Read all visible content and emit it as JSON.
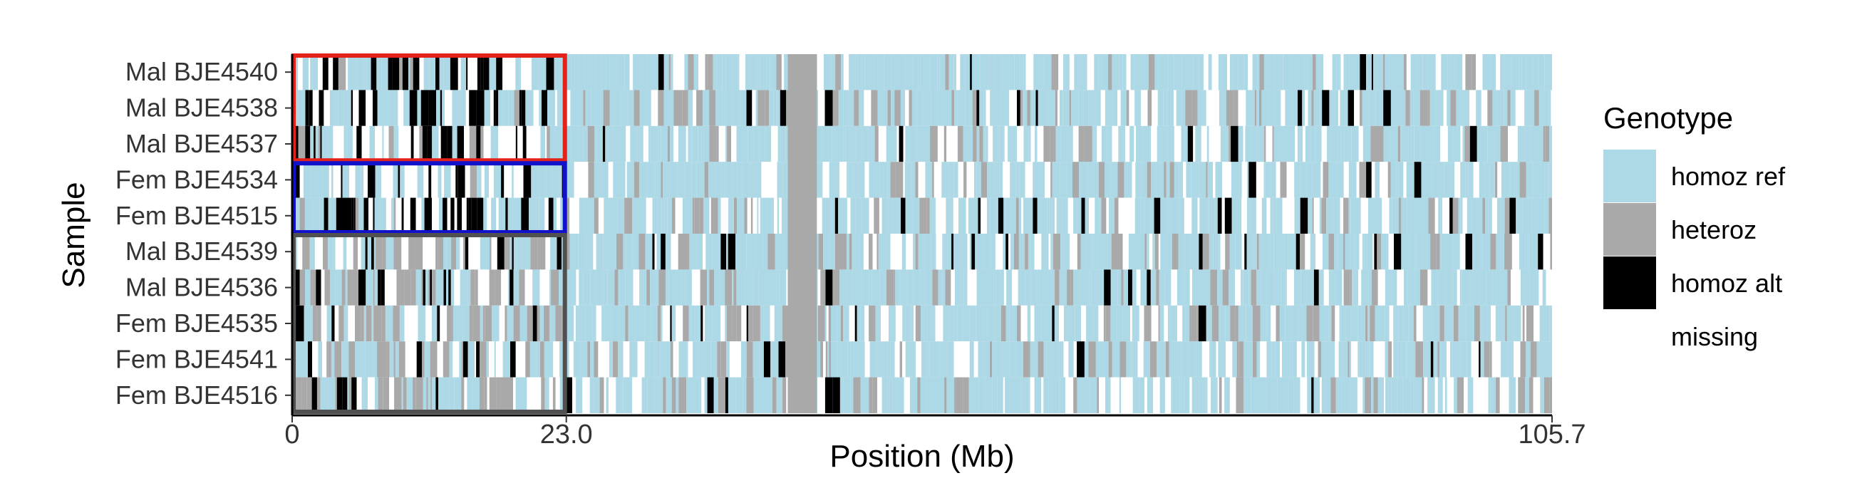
{
  "chart_data": {
    "type": "heatmap",
    "xlabel": "Position (Mb)",
    "ylabel": "Sample",
    "xlim": [
      0,
      105.7
    ],
    "xticks": [
      {
        "value": 0,
        "label": "0"
      },
      {
        "value": 23.0,
        "label": "23.0"
      },
      {
        "value": 105.7,
        "label": "105.7"
      }
    ],
    "samples": [
      "Mal BJE4540",
      "Mal BJE4538",
      "Mal BJE4537",
      "Fem BJE4534",
      "Fem BJE4515",
      "Mal BJE4539",
      "Mal BJE4536",
      "Fem BJE4535",
      "Fem BJE4541",
      "Fem BJE4516"
    ],
    "legend": {
      "title": "Genotype",
      "items": [
        {
          "label": "homoz ref",
          "color": "#add8e6"
        },
        {
          "label": "heteroz",
          "color": "#a9a9a9"
        },
        {
          "label": "homoz alt",
          "color": "#000000"
        },
        {
          "label": "missing",
          "color": "#ffffff"
        }
      ]
    },
    "highlight_boxes": [
      {
        "x_range": [
          0,
          23.0
        ],
        "rows": [
          "Mal BJE4540",
          "Mal BJE4537"
        ],
        "color": "#e32219"
      },
      {
        "x_range": [
          0,
          23.0
        ],
        "rows": [
          "Fem BJE4534",
          "Fem BJE4515"
        ],
        "color": "#1212cc"
      },
      {
        "x_range": [
          0,
          23.0
        ],
        "rows": [
          "Mal BJE4539",
          "Fem BJE4516"
        ],
        "color": "#505050"
      }
    ],
    "genotype_tracks": {
      "note_values": "approximate per-segment genotype composition along position for each sample",
      "regions": [
        {
          "x_range": [
            0,
            23.0
          ],
          "composition": {
            "Mal BJE4540": {
              "homoz ref": 0.45,
              "heteroz": 0.05,
              "homoz alt": 0.25,
              "missing": 0.25
            },
            "Mal BJE4538": {
              "homoz ref": 0.4,
              "heteroz": 0.05,
              "homoz alt": 0.3,
              "missing": 0.25
            },
            "Mal BJE4537": {
              "homoz ref": 0.45,
              "heteroz": 0.05,
              "homoz alt": 0.25,
              "missing": 0.25
            },
            "Fem BJE4534": {
              "homoz ref": 0.4,
              "heteroz": 0.05,
              "homoz alt": 0.3,
              "missing": 0.25
            },
            "Fem BJE4515": {
              "homoz ref": 0.4,
              "heteroz": 0.05,
              "homoz alt": 0.3,
              "missing": 0.25
            },
            "Mal BJE4539": {
              "homoz ref": 0.4,
              "heteroz": 0.3,
              "homoz alt": 0.1,
              "missing": 0.2
            },
            "Mal BJE4536": {
              "homoz ref": 0.4,
              "heteroz": 0.28,
              "homoz alt": 0.12,
              "missing": 0.2
            },
            "Fem BJE4535": {
              "homoz ref": 0.4,
              "heteroz": 0.32,
              "homoz alt": 0.08,
              "missing": 0.2
            },
            "Fem BJE4541": {
              "homoz ref": 0.4,
              "heteroz": 0.28,
              "homoz alt": 0.1,
              "missing": 0.22
            },
            "Fem BJE4516": {
              "homoz ref": 0.4,
              "heteroz": 0.3,
              "homoz alt": 0.1,
              "missing": 0.2
            }
          }
        },
        {
          "x_range": [
            23.0,
            105.7
          ],
          "composition": {
            "Mal BJE4540": {
              "homoz ref": 0.72,
              "heteroz": 0.08,
              "homoz alt": 0.03,
              "missing": 0.17
            },
            "Mal BJE4538": {
              "homoz ref": 0.6,
              "heteroz": 0.2,
              "homoz alt": 0.04,
              "missing": 0.16
            },
            "Mal BJE4537": {
              "homoz ref": 0.7,
              "heteroz": 0.1,
              "homoz alt": 0.03,
              "missing": 0.17
            },
            "Fem BJE4534": {
              "homoz ref": 0.68,
              "heteroz": 0.12,
              "homoz alt": 0.03,
              "missing": 0.17
            },
            "Fem BJE4515": {
              "homoz ref": 0.66,
              "heteroz": 0.14,
              "homoz alt": 0.03,
              "missing": 0.17
            },
            "Mal BJE4539": {
              "homoz ref": 0.62,
              "heteroz": 0.18,
              "homoz alt": 0.04,
              "missing": 0.16
            },
            "Mal BJE4536": {
              "homoz ref": 0.64,
              "heteroz": 0.14,
              "homoz alt": 0.04,
              "missing": 0.18
            },
            "Fem BJE4535": {
              "homoz ref": 0.63,
              "heteroz": 0.17,
              "homoz alt": 0.03,
              "missing": 0.17
            },
            "Fem BJE4541": {
              "homoz ref": 0.62,
              "heteroz": 0.15,
              "homoz alt": 0.03,
              "missing": 0.2
            },
            "Fem BJE4516": {
              "homoz ref": 0.64,
              "heteroz": 0.15,
              "homoz alt": 0.04,
              "missing": 0.17
            }
          }
        }
      ],
      "heteroz_band_positions_mb": [
        42.0,
        42.8,
        43.6
      ]
    }
  }
}
